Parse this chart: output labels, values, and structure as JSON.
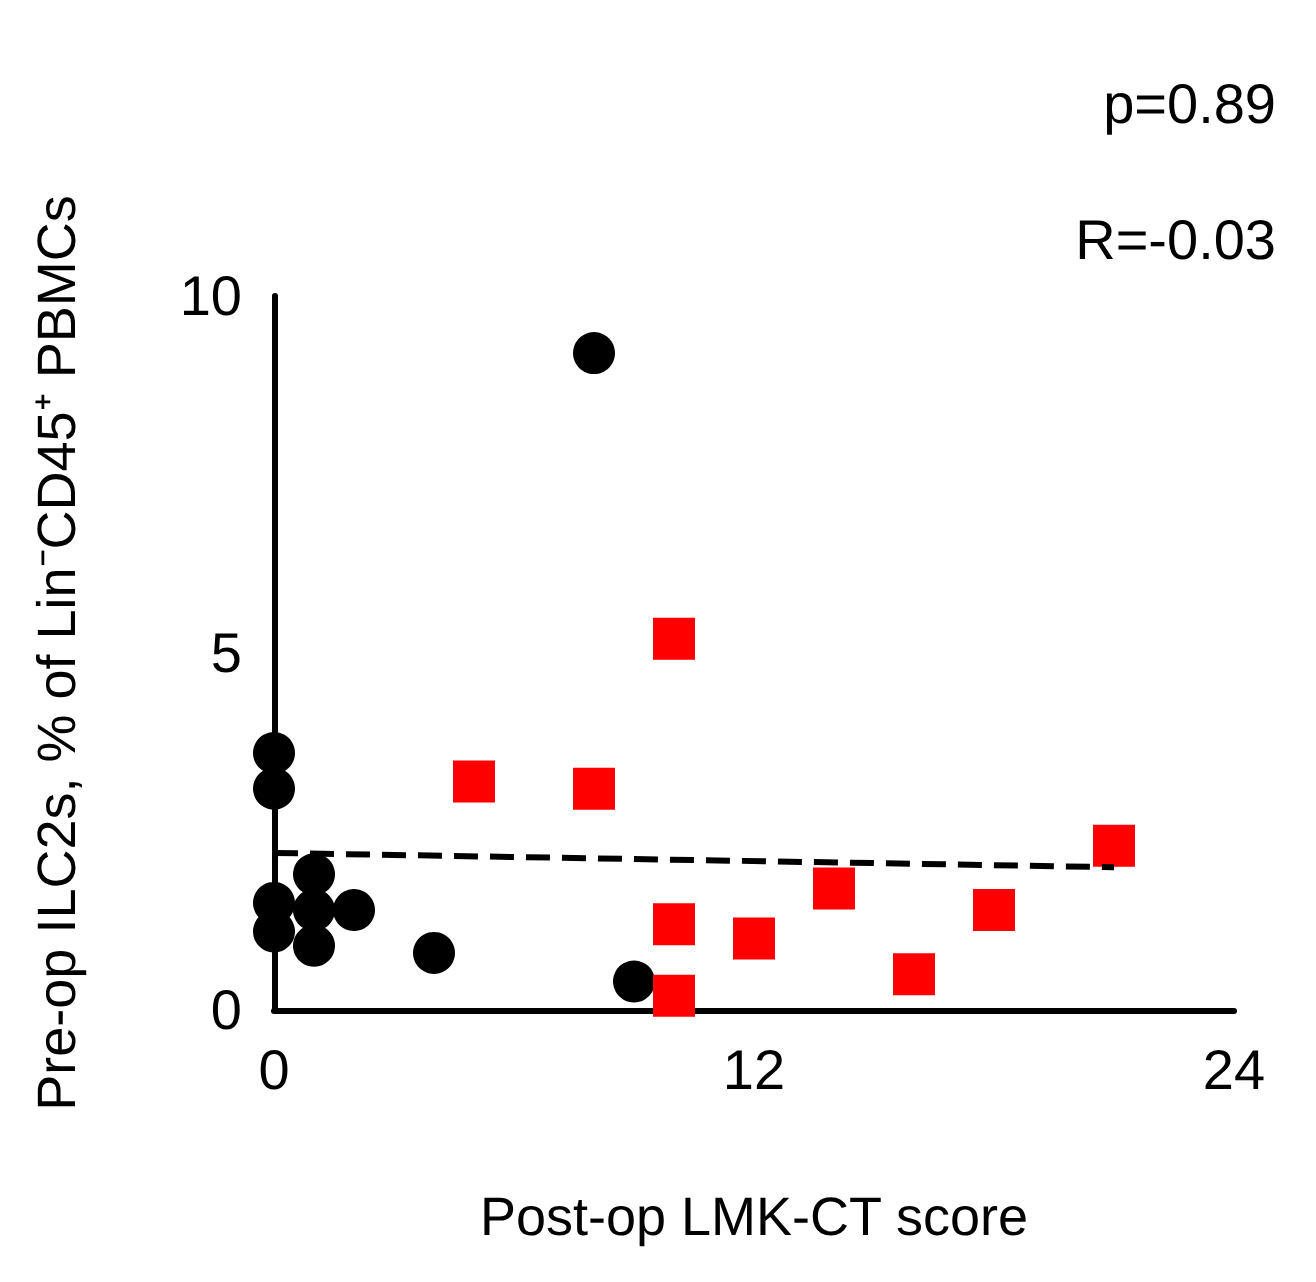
{
  "chart_data": {
    "type": "scatter",
    "xlabel": "Post-op LMK-CT score",
    "ylabel": "Pre-op ILC2s, % of Lin⁻CD45⁺ PBMCs",
    "annotations": [
      "p=0.89",
      "R=-0.03"
    ],
    "xlim": [
      0,
      24
    ],
    "xticks": [
      0,
      12,
      24
    ],
    "ylim": [
      0,
      10
    ],
    "yticks": [
      0,
      5,
      10
    ],
    "grid": false,
    "series": [
      {
        "color": "#000000",
        "marker": "circle",
        "x": [
          0,
          0,
          0,
          0,
          1,
          1,
          1,
          2,
          4,
          8,
          9
        ],
        "values": [
          3.6,
          3.1,
          1.5,
          1.1,
          1.9,
          1.4,
          0.9,
          1.4,
          0.8,
          9.2,
          0.4
        ]
      },
      {
        "color": "#ff0000",
        "marker": "square",
        "x": [
          5,
          8,
          10,
          10,
          10,
          12,
          14,
          16,
          18,
          21
        ],
        "values": [
          3.2,
          3.1,
          5.2,
          1.2,
          0.2,
          1.0,
          1.7,
          0.5,
          1.4,
          2.3
        ]
      },
      {
        "type": "line",
        "color": "#000000",
        "marker": "none",
        "line_style": "dashed",
        "x": [
          0,
          21
        ],
        "values": [
          2.2,
          2.0
        ]
      }
    ]
  }
}
